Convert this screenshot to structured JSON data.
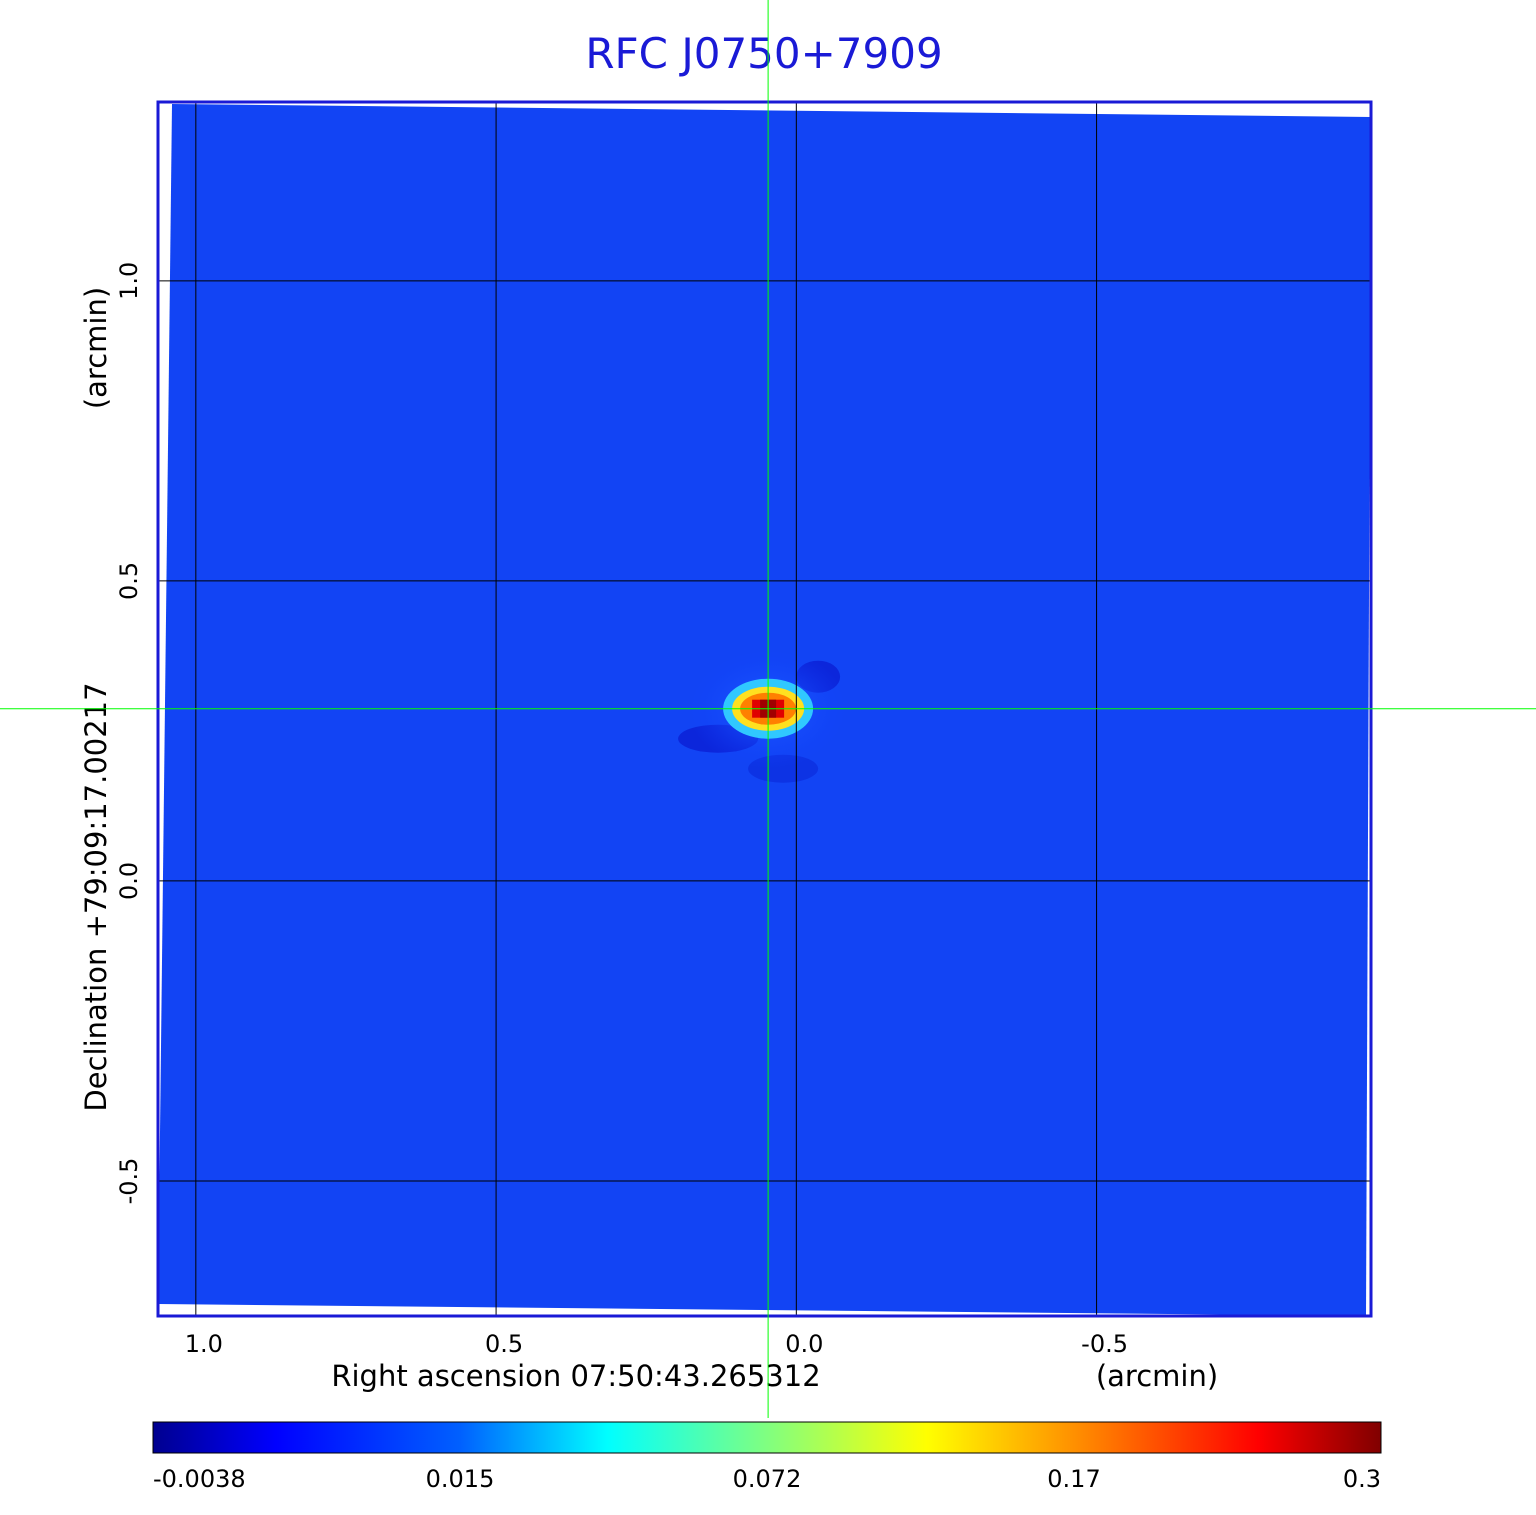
{
  "chart_data": {
    "type": "image",
    "title": "RFC J0750+7909",
    "xlabel": "Right ascension  07:50:43.265312",
    "xunit": "(arcmin)",
    "ylabel": "Declination  +79:09:17.00217",
    "yunit": "(arcmin)",
    "xlim": [
      1.063,
      -0.957
    ],
    "ylim": [
      -0.725,
      1.298
    ],
    "xticks": [
      {
        "value": 1,
        "label": "1.0"
      },
      0.5,
      {
        "value": 0,
        "label": "0.0"
      },
      -0.5
    ],
    "yticks": [
      {
        "value": 1,
        "label": "1.0"
      },
      0.5,
      {
        "value": 0,
        "label": "0.0"
      },
      -0.5
    ],
    "grid": true,
    "source": {
      "x": 0.047,
      "y": 0.287
    },
    "crosshair_color": "#00ff00",
    "colorbar_ticks": [
      -0.0038,
      0.015,
      0.072,
      0.17,
      0.3
    ],
    "colormap": "jet"
  }
}
